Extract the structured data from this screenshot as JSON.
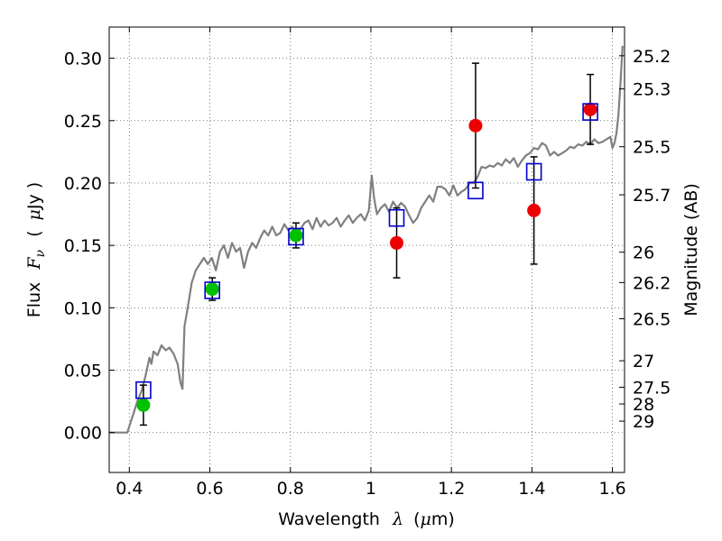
{
  "chart_data": {
    "type": "scatter",
    "title": "",
    "xlabel": {
      "text": "Wavelength",
      "symbol": "λ",
      "unit_prefix": "(",
      "unit_mu": "μ",
      "unit_rest": "m)"
    },
    "ylabel": {
      "text": "Flux",
      "symbol": "F",
      "subscript": "ν",
      "unit_open": "(",
      "unit_mu": "μ",
      "unit_rest": "Jy )"
    },
    "y2label": "Magnitude (AB)",
    "xlim": [
      0.35,
      1.63
    ],
    "ylim": [
      -0.032,
      0.325
    ],
    "grid": true,
    "x_ticks": [
      {
        "value": 0.4,
        "label": "0.4"
      },
      {
        "value": 0.6,
        "label": "0.6"
      },
      {
        "value": 0.8,
        "label": "0.8"
      },
      {
        "value": 1.0,
        "label": "1"
      },
      {
        "value": 1.2,
        "label": "1.2"
      },
      {
        "value": 1.4,
        "label": "1.4"
      },
      {
        "value": 1.6,
        "label": "1.6"
      }
    ],
    "y_ticks": [
      {
        "value": 0.0,
        "label": "0.00"
      },
      {
        "value": 0.05,
        "label": "0.05"
      },
      {
        "value": 0.1,
        "label": "0.10"
      },
      {
        "value": 0.15,
        "label": "0.15"
      },
      {
        "value": 0.2,
        "label": "0.20"
      },
      {
        "value": 0.25,
        "label": "0.25"
      },
      {
        "value": 0.3,
        "label": "0.30"
      }
    ],
    "mag_ticks": [
      {
        "mag": 25.2,
        "label": "25.2"
      },
      {
        "mag": 25.3,
        "label": "25.3"
      },
      {
        "mag": 25.5,
        "label": "25.5"
      },
      {
        "mag": 25.7,
        "label": "25.7"
      },
      {
        "mag": 26.0,
        "label": "26"
      },
      {
        "mag": 26.2,
        "label": "26.2"
      },
      {
        "mag": 26.5,
        "label": "26.5"
      },
      {
        "mag": 27.0,
        "label": "27"
      },
      {
        "mag": 27.5,
        "label": "27.5"
      },
      {
        "mag": 28.0,
        "label": "28"
      },
      {
        "mag": 29.0,
        "label": "29"
      }
    ],
    "colors": {
      "model": "#808080",
      "green": "#00c000",
      "red": "#ee0000",
      "box": "#0000cc",
      "errorbar": "#000000",
      "grid": "#555555"
    },
    "model_spectrum": [
      [
        0.35,
        0.0
      ],
      [
        0.395,
        0.0
      ],
      [
        0.4,
        0.005
      ],
      [
        0.41,
        0.015
      ],
      [
        0.42,
        0.025
      ],
      [
        0.43,
        0.033
      ],
      [
        0.44,
        0.045
      ],
      [
        0.45,
        0.06
      ],
      [
        0.455,
        0.055
      ],
      [
        0.46,
        0.065
      ],
      [
        0.47,
        0.062
      ],
      [
        0.48,
        0.07
      ],
      [
        0.49,
        0.066
      ],
      [
        0.5,
        0.068
      ],
      [
        0.51,
        0.063
      ],
      [
        0.52,
        0.055
      ],
      [
        0.527,
        0.04
      ],
      [
        0.532,
        0.035
      ],
      [
        0.537,
        0.085
      ],
      [
        0.545,
        0.1
      ],
      [
        0.555,
        0.12
      ],
      [
        0.565,
        0.13
      ],
      [
        0.575,
        0.135
      ],
      [
        0.585,
        0.14
      ],
      [
        0.595,
        0.135
      ],
      [
        0.605,
        0.14
      ],
      [
        0.615,
        0.13
      ],
      [
        0.625,
        0.145
      ],
      [
        0.635,
        0.15
      ],
      [
        0.645,
        0.14
      ],
      [
        0.655,
        0.152
      ],
      [
        0.665,
        0.145
      ],
      [
        0.675,
        0.148
      ],
      [
        0.685,
        0.132
      ],
      [
        0.695,
        0.145
      ],
      [
        0.705,
        0.152
      ],
      [
        0.715,
        0.148
      ],
      [
        0.725,
        0.156
      ],
      [
        0.735,
        0.162
      ],
      [
        0.745,
        0.158
      ],
      [
        0.755,
        0.165
      ],
      [
        0.765,
        0.158
      ],
      [
        0.775,
        0.16
      ],
      [
        0.785,
        0.167
      ],
      [
        0.795,
        0.162
      ],
      [
        0.805,
        0.165
      ],
      [
        0.815,
        0.158
      ],
      [
        0.825,
        0.163
      ],
      [
        0.835,
        0.168
      ],
      [
        0.845,
        0.17
      ],
      [
        0.855,
        0.163
      ],
      [
        0.865,
        0.172
      ],
      [
        0.875,
        0.165
      ],
      [
        0.885,
        0.17
      ],
      [
        0.895,
        0.166
      ],
      [
        0.905,
        0.168
      ],
      [
        0.915,
        0.172
      ],
      [
        0.925,
        0.165
      ],
      [
        0.935,
        0.17
      ],
      [
        0.945,
        0.174
      ],
      [
        0.955,
        0.168
      ],
      [
        0.965,
        0.172
      ],
      [
        0.975,
        0.175
      ],
      [
        0.985,
        0.17
      ],
      [
        0.995,
        0.178
      ],
      [
        1.002,
        0.206
      ],
      [
        1.008,
        0.188
      ],
      [
        1.015,
        0.175
      ],
      [
        1.025,
        0.18
      ],
      [
        1.035,
        0.183
      ],
      [
        1.045,
        0.177
      ],
      [
        1.055,
        0.185
      ],
      [
        1.065,
        0.18
      ],
      [
        1.075,
        0.184
      ],
      [
        1.085,
        0.181
      ],
      [
        1.095,
        0.174
      ],
      [
        1.105,
        0.168
      ],
      [
        1.115,
        0.172
      ],
      [
        1.125,
        0.18
      ],
      [
        1.135,
        0.185
      ],
      [
        1.145,
        0.19
      ],
      [
        1.155,
        0.185
      ],
      [
        1.165,
        0.197
      ],
      [
        1.175,
        0.197
      ],
      [
        1.185,
        0.195
      ],
      [
        1.195,
        0.19
      ],
      [
        1.205,
        0.198
      ],
      [
        1.215,
        0.19
      ],
      [
        1.225,
        0.193
      ],
      [
        1.235,
        0.195
      ],
      [
        1.245,
        0.2
      ],
      [
        1.255,
        0.2
      ],
      [
        1.265,
        0.205
      ],
      [
        1.275,
        0.213
      ],
      [
        1.285,
        0.212
      ],
      [
        1.295,
        0.214
      ],
      [
        1.305,
        0.213
      ],
      [
        1.315,
        0.216
      ],
      [
        1.325,
        0.214
      ],
      [
        1.335,
        0.219
      ],
      [
        1.345,
        0.216
      ],
      [
        1.355,
        0.22
      ],
      [
        1.365,
        0.213
      ],
      [
        1.375,
        0.218
      ],
      [
        1.385,
        0.222
      ],
      [
        1.395,
        0.224
      ],
      [
        1.405,
        0.228
      ],
      [
        1.415,
        0.227
      ],
      [
        1.425,
        0.232
      ],
      [
        1.435,
        0.23
      ],
      [
        1.445,
        0.222
      ],
      [
        1.455,
        0.225
      ],
      [
        1.465,
        0.222
      ],
      [
        1.475,
        0.224
      ],
      [
        1.485,
        0.226
      ],
      [
        1.495,
        0.229
      ],
      [
        1.505,
        0.228
      ],
      [
        1.515,
        0.231
      ],
      [
        1.525,
        0.23
      ],
      [
        1.535,
        0.233
      ],
      [
        1.545,
        0.231
      ],
      [
        1.555,
        0.235
      ],
      [
        1.565,
        0.232
      ],
      [
        1.575,
        0.233
      ],
      [
        1.585,
        0.235
      ],
      [
        1.595,
        0.237
      ],
      [
        1.6,
        0.228
      ],
      [
        1.605,
        0.232
      ],
      [
        1.61,
        0.24
      ],
      [
        1.615,
        0.255
      ],
      [
        1.62,
        0.28
      ],
      [
        1.625,
        0.31
      ]
    ],
    "model_photometry": [
      {
        "x": 0.435,
        "y": 0.034
      },
      {
        "x": 0.606,
        "y": 0.114
      },
      {
        "x": 0.814,
        "y": 0.157
      },
      {
        "x": 1.064,
        "y": 0.172
      },
      {
        "x": 1.26,
        "y": 0.194
      },
      {
        "x": 1.405,
        "y": 0.209
      },
      {
        "x": 1.545,
        "y": 0.257
      }
    ],
    "detections_green": [
      {
        "x": 0.435,
        "y": 0.022,
        "yerr": 0.016
      },
      {
        "x": 0.606,
        "y": 0.115,
        "yerr": 0.009
      },
      {
        "x": 0.814,
        "y": 0.158,
        "yerr": 0.01
      }
    ],
    "detections_red": [
      {
        "x": 1.064,
        "y": 0.152,
        "yerr": 0.028
      },
      {
        "x": 1.26,
        "y": 0.246,
        "yerr": 0.05
      },
      {
        "x": 1.405,
        "y": 0.178,
        "yerr": 0.043
      },
      {
        "x": 1.545,
        "y": 0.259,
        "yerr": 0.028
      }
    ]
  }
}
